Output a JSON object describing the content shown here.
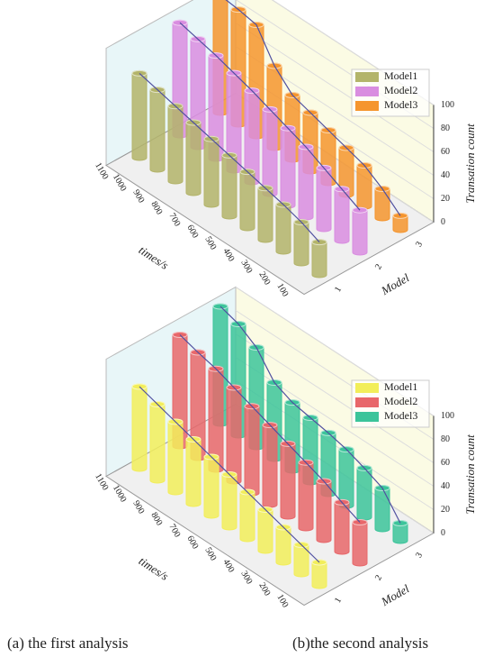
{
  "chart_data": [
    {
      "type": "bar3d",
      "caption": "(a)  the first analysis",
      "categories": [
        "1100",
        "1000",
        "900",
        "800",
        "700",
        "600",
        "500",
        "400",
        "300",
        "200",
        "100"
      ],
      "x_label": "times/s",
      "model_label": "Model",
      "model_ticks": [
        1,
        2,
        3
      ],
      "z_label": "Transation count",
      "zlim": [
        0,
        100
      ],
      "zticks": [
        0,
        20,
        40,
        60,
        80,
        100
      ],
      "series": [
        {
          "name": "Model1",
          "color": "#b3b46a",
          "values": [
            72,
            68,
            64,
            60,
            56,
            52,
            48,
            44,
            40,
            35,
            28
          ]
        },
        {
          "name": "Model2",
          "color": "#d98de0",
          "values": [
            96,
            92,
            88,
            83,
            78,
            72,
            66,
            60,
            52,
            44,
            36
          ]
        },
        {
          "name": "Model3",
          "color": "#f5952e",
          "values": [
            100,
            98,
            95,
            70,
            55,
            50,
            45,
            40,
            35,
            25,
            12
          ]
        }
      ]
    },
    {
      "type": "bar3d",
      "caption": "(b)the second analysis",
      "categories": [
        "1100",
        "1000",
        "900",
        "800",
        "700",
        "600",
        "500",
        "400",
        "300",
        "200",
        "100"
      ],
      "x_label": "times/s",
      "model_label": "Model",
      "model_ticks": [
        1,
        2,
        3
      ],
      "z_label": "Transation count",
      "zlim": [
        0,
        100
      ],
      "zticks": [
        0,
        20,
        40,
        60,
        80,
        100
      ],
      "series": [
        {
          "name": "Model1",
          "color": "#f2ee5a",
          "values": [
            70,
            65,
            60,
            55,
            50,
            45,
            40,
            35,
            30,
            25,
            20
          ]
        },
        {
          "name": "Model2",
          "color": "#e8676a",
          "values": [
            95,
            90,
            86,
            80,
            74,
            68,
            62,
            56,
            50,
            42,
            35
          ]
        },
        {
          "name": "Model3",
          "color": "#3cc49a",
          "values": [
            100,
            95,
            85,
            65,
            58,
            55,
            52,
            48,
            42,
            35,
            15
          ]
        }
      ]
    }
  ]
}
